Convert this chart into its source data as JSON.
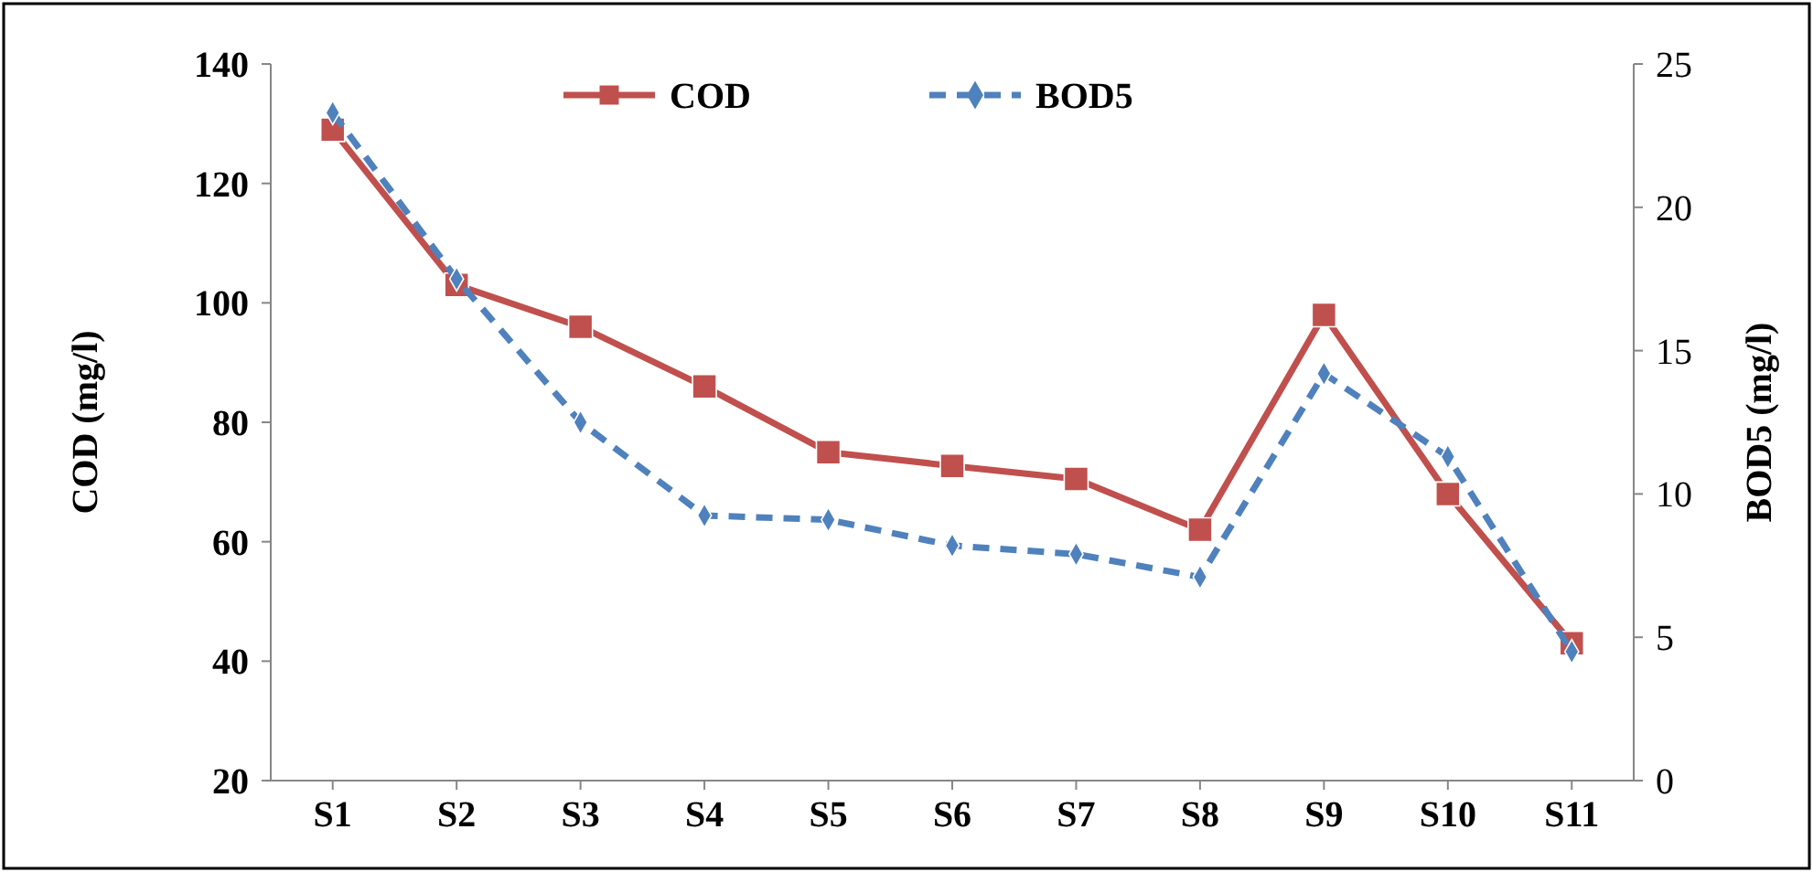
{
  "chart_data": {
    "type": "line",
    "categories": [
      "S1",
      "S2",
      "S3",
      "S4",
      "S5",
      "S6",
      "S7",
      "S8",
      "S9",
      "S10",
      "S11"
    ],
    "ylabel": "COD  (mg/l)",
    "y2label": "BOD5  (mg/l)",
    "ylim": [
      20,
      140
    ],
    "yticks": [
      20,
      40,
      60,
      80,
      100,
      120,
      140
    ],
    "y2lim": [
      0,
      25
    ],
    "y2ticks": [
      0,
      5,
      10,
      15,
      20,
      25
    ],
    "series": [
      {
        "name": "COD",
        "color": "#c0504d",
        "marker": "square",
        "line_style": "solid",
        "values": [
          129,
          103,
          96,
          86,
          75,
          72.7,
          70.5,
          62,
          98,
          68,
          43
        ]
      },
      {
        "name": "BOD5",
        "color": "#4f81bd",
        "marker": "diamond",
        "line_style": "dashed",
        "axis": "y2",
        "values": [
          23.3,
          17.5,
          12.5,
          9.25,
          9.1,
          8.2,
          7.9,
          7.1,
          14.2,
          11.3,
          4.5
        ]
      }
    ],
    "legend": "top",
    "grid": false
  }
}
